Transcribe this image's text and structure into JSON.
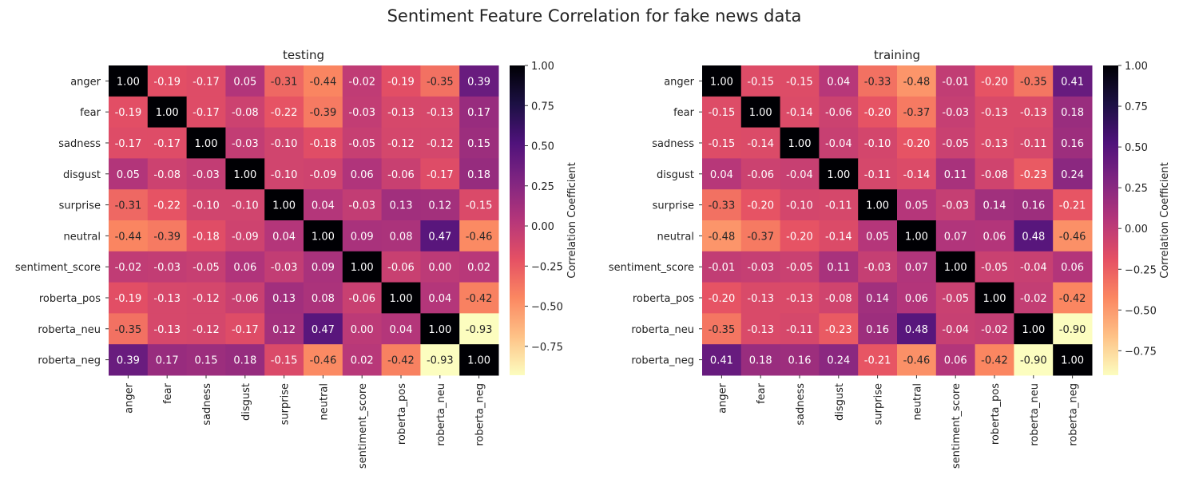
{
  "figure": {
    "suptitle": "Sentiment Feature Correlation for fake news data"
  },
  "chart_data": [
    {
      "type": "heatmap",
      "title": "testing",
      "colormap": "magma_r",
      "vmin": -0.93,
      "vmax": 1.0,
      "colorbar_label": "Correlation Coefficient",
      "colorbar_ticks": [
        "1.00",
        "0.75",
        "0.50",
        "0.25",
        "0.00",
        "−0.25",
        "−0.50",
        "−0.75"
      ],
      "colorbar_tick_values": [
        1.0,
        0.75,
        0.5,
        0.25,
        0.0,
        -0.25,
        -0.5,
        -0.75
      ],
      "x_labels": [
        "anger",
        "fear",
        "sadness",
        "disgust",
        "surprise",
        "neutral",
        "sentiment_score",
        "roberta_pos",
        "roberta_neu",
        "roberta_neg"
      ],
      "y_labels": [
        "anger",
        "fear",
        "sadness",
        "disgust",
        "surprise",
        "neutral",
        "sentiment_score",
        "roberta_pos",
        "roberta_neu",
        "roberta_neg"
      ],
      "values": [
        [
          1.0,
          -0.19,
          -0.17,
          0.05,
          -0.31,
          -0.44,
          -0.02,
          -0.19,
          -0.35,
          0.39
        ],
        [
          -0.19,
          1.0,
          -0.17,
          -0.08,
          -0.22,
          -0.39,
          -0.03,
          -0.13,
          -0.13,
          0.17
        ],
        [
          -0.17,
          -0.17,
          1.0,
          -0.03,
          -0.1,
          -0.18,
          -0.05,
          -0.12,
          -0.12,
          0.15
        ],
        [
          0.05,
          -0.08,
          -0.03,
          1.0,
          -0.1,
          -0.09,
          0.06,
          -0.06,
          -0.17,
          0.18
        ],
        [
          -0.31,
          -0.22,
          -0.1,
          -0.1,
          1.0,
          0.04,
          -0.03,
          0.13,
          0.12,
          -0.15
        ],
        [
          -0.44,
          -0.39,
          -0.18,
          -0.09,
          0.04,
          1.0,
          0.09,
          0.08,
          0.47,
          -0.46
        ],
        [
          -0.02,
          -0.03,
          -0.05,
          0.06,
          -0.03,
          0.09,
          1.0,
          -0.06,
          0.0,
          0.02
        ],
        [
          -0.19,
          -0.13,
          -0.12,
          -0.06,
          0.13,
          0.08,
          -0.06,
          1.0,
          0.04,
          -0.42
        ],
        [
          -0.35,
          -0.13,
          -0.12,
          -0.17,
          0.12,
          0.47,
          0.0,
          0.04,
          1.0,
          -0.93
        ],
        [
          0.39,
          0.17,
          0.15,
          0.18,
          -0.15,
          -0.46,
          0.02,
          -0.42,
          -0.93,
          1.0
        ]
      ]
    },
    {
      "type": "heatmap",
      "title": "training",
      "colormap": "magma_r",
      "vmin": -0.9,
      "vmax": 1.0,
      "colorbar_label": "Correlation Coefficient",
      "colorbar_ticks": [
        "1.00",
        "0.75",
        "0.50",
        "0.25",
        "0.00",
        "−0.25",
        "−0.50",
        "−0.75"
      ],
      "colorbar_tick_values": [
        1.0,
        0.75,
        0.5,
        0.25,
        0.0,
        -0.25,
        -0.5,
        -0.75
      ],
      "x_labels": [
        "anger",
        "fear",
        "sadness",
        "disgust",
        "surprise",
        "neutral",
        "sentiment_score",
        "roberta_pos",
        "roberta_neu",
        "roberta_neg"
      ],
      "y_labels": [
        "anger",
        "fear",
        "sadness",
        "disgust",
        "surprise",
        "neutral",
        "sentiment_score",
        "roberta_pos",
        "roberta_neu",
        "roberta_neg"
      ],
      "values": [
        [
          1.0,
          -0.15,
          -0.15,
          0.04,
          -0.33,
          -0.48,
          -0.01,
          -0.2,
          -0.35,
          0.41
        ],
        [
          -0.15,
          1.0,
          -0.14,
          -0.06,
          -0.2,
          -0.37,
          -0.03,
          -0.13,
          -0.13,
          0.18
        ],
        [
          -0.15,
          -0.14,
          1.0,
          -0.04,
          -0.1,
          -0.2,
          -0.05,
          -0.13,
          -0.11,
          0.16
        ],
        [
          0.04,
          -0.06,
          -0.04,
          1.0,
          -0.11,
          -0.14,
          0.11,
          -0.08,
          -0.23,
          0.24
        ],
        [
          -0.33,
          -0.2,
          -0.1,
          -0.11,
          1.0,
          0.05,
          -0.03,
          0.14,
          0.16,
          -0.21
        ],
        [
          -0.48,
          -0.37,
          -0.2,
          -0.14,
          0.05,
          1.0,
          0.07,
          0.06,
          0.48,
          -0.46
        ],
        [
          -0.01,
          -0.03,
          -0.05,
          0.11,
          -0.03,
          0.07,
          1.0,
          -0.05,
          -0.04,
          0.06
        ],
        [
          -0.2,
          -0.13,
          -0.13,
          -0.08,
          0.14,
          0.06,
          -0.05,
          1.0,
          -0.02,
          -0.42
        ],
        [
          -0.35,
          -0.13,
          -0.11,
          -0.23,
          0.16,
          0.48,
          -0.04,
          -0.02,
          1.0,
          -0.9
        ],
        [
          0.41,
          0.18,
          0.16,
          0.24,
          -0.21,
          -0.46,
          0.06,
          -0.42,
          -0.9,
          1.0
        ]
      ]
    }
  ]
}
